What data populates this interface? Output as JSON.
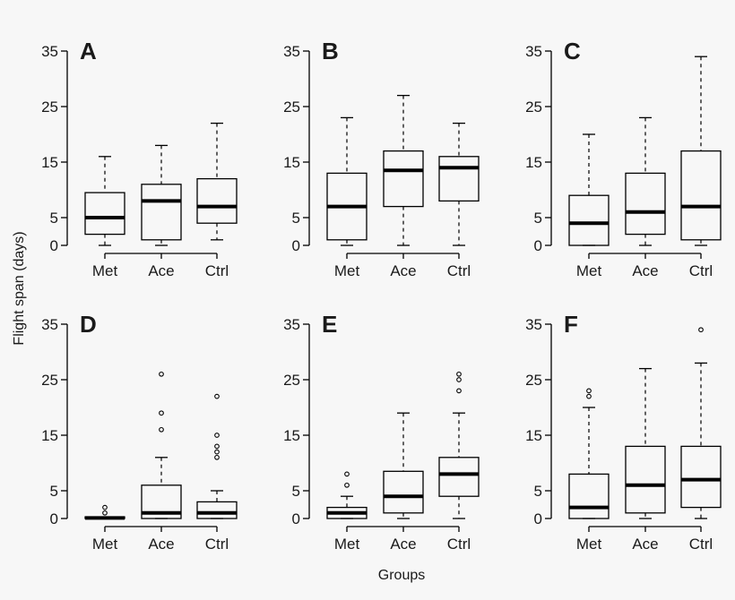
{
  "figure": {
    "ylabel": "Flight span (days)",
    "xlabel": "Groups",
    "colors": {
      "line": "#000000",
      "text": "#1a1a1a",
      "background": "#f7f7f7"
    }
  },
  "chart_data": [
    {
      "type": "boxplot",
      "panel": "A",
      "categories": [
        "Met",
        "Ace",
        "Ctrl"
      ],
      "yticks": [
        0,
        5,
        15,
        25,
        35
      ],
      "ylim": [
        0,
        35
      ],
      "boxes": [
        {
          "min": 0,
          "q1": 2,
          "median": 5,
          "q3": 9.5,
          "max": 16,
          "outliers": []
        },
        {
          "min": 0,
          "q1": 1,
          "median": 8,
          "q3": 11,
          "max": 18,
          "outliers": []
        },
        {
          "min": 1,
          "q1": 4,
          "median": 7,
          "q3": 12,
          "max": 22,
          "outliers": []
        }
      ]
    },
    {
      "type": "boxplot",
      "panel": "B",
      "categories": [
        "Met",
        "Ace",
        "Ctrl"
      ],
      "yticks": [
        0,
        5,
        15,
        25,
        35
      ],
      "ylim": [
        0,
        35
      ],
      "boxes": [
        {
          "min": 0,
          "q1": 1,
          "median": 7,
          "q3": 13,
          "max": 23,
          "outliers": []
        },
        {
          "min": 0,
          "q1": 7,
          "median": 13.5,
          "q3": 17,
          "max": 27,
          "outliers": []
        },
        {
          "min": 0,
          "q1": 8,
          "median": 14,
          "q3": 16,
          "max": 22,
          "outliers": []
        }
      ]
    },
    {
      "type": "boxplot",
      "panel": "C",
      "categories": [
        "Met",
        "Ace",
        "Ctrl"
      ],
      "yticks": [
        0,
        5,
        15,
        25,
        35
      ],
      "ylim": [
        0,
        35
      ],
      "boxes": [
        {
          "min": 0,
          "q1": 0,
          "median": 4,
          "q3": 9,
          "max": 20,
          "outliers": []
        },
        {
          "min": 0,
          "q1": 2,
          "median": 6,
          "q3": 13,
          "max": 23,
          "outliers": []
        },
        {
          "min": 0,
          "q1": 1,
          "median": 7,
          "q3": 17,
          "max": 34,
          "outliers": []
        }
      ]
    },
    {
      "type": "boxplot",
      "panel": "D",
      "categories": [
        "Met",
        "Ace",
        "Ctrl"
      ],
      "yticks": [
        0,
        5,
        15,
        25,
        35
      ],
      "ylim": [
        0,
        35
      ],
      "boxes": [
        {
          "min": 0,
          "q1": 0,
          "median": 0.1,
          "q3": 0.3,
          "max": 0.3,
          "outliers": [
            1,
            2
          ]
        },
        {
          "min": 0,
          "q1": 0,
          "median": 1,
          "q3": 6,
          "max": 11,
          "outliers": [
            16,
            19,
            26
          ]
        },
        {
          "min": 0,
          "q1": 0,
          "median": 1,
          "q3": 3,
          "max": 5,
          "outliers": [
            11,
            12,
            13,
            15,
            22
          ]
        }
      ]
    },
    {
      "type": "boxplot",
      "panel": "E",
      "categories": [
        "Met",
        "Ace",
        "Ctrl"
      ],
      "yticks": [
        0,
        5,
        15,
        25,
        35
      ],
      "ylim": [
        0,
        35
      ],
      "boxes": [
        {
          "min": 0,
          "q1": 0,
          "median": 1,
          "q3": 2,
          "max": 4,
          "outliers": [
            6,
            8
          ]
        },
        {
          "min": 0,
          "q1": 1,
          "median": 4,
          "q3": 8.5,
          "max": 19,
          "outliers": []
        },
        {
          "min": 0,
          "q1": 4,
          "median": 8,
          "q3": 11,
          "max": 19,
          "outliers": [
            23,
            25,
            26
          ]
        }
      ]
    },
    {
      "type": "boxplot",
      "panel": "F",
      "categories": [
        "Met",
        "Ace",
        "Ctrl"
      ],
      "yticks": [
        0,
        5,
        15,
        25,
        35
      ],
      "ylim": [
        0,
        35
      ],
      "boxes": [
        {
          "min": 0,
          "q1": 0,
          "median": 2,
          "q3": 8,
          "max": 20,
          "outliers": [
            22,
            23
          ]
        },
        {
          "min": 0,
          "q1": 1,
          "median": 6,
          "q3": 13,
          "max": 27,
          "outliers": []
        },
        {
          "min": 0,
          "q1": 2,
          "median": 7,
          "q3": 13,
          "max": 28,
          "outliers": [
            34
          ]
        }
      ]
    }
  ]
}
